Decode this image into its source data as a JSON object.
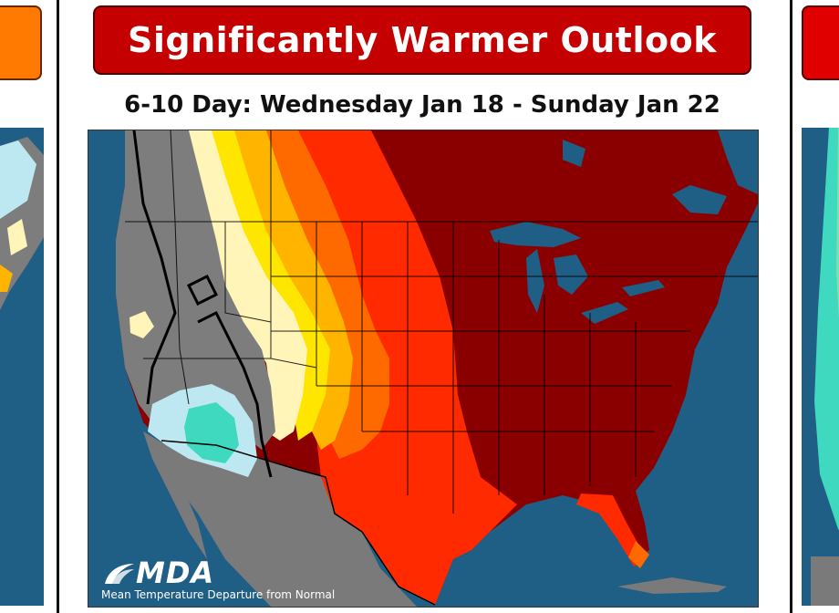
{
  "header": {
    "title": "Significantly Warmer Outlook",
    "date_range": "6-10 Day: Wednesday Jan 18 - Sunday Jan 22"
  },
  "map": {
    "logo_text": "MDA",
    "caption": "Mean Temperature Departure from Normal",
    "colors": {
      "ocean": "#1f5f86",
      "land_outside": "#7a7a7a",
      "much_below": "#3fd9c0",
      "below": "#bde8f2",
      "near_normal": "#7d7d7d",
      "slightly_above": "#fff5b8",
      "above": "#ffe600",
      "above_2": "#ffb400",
      "above_3": "#ff6a00",
      "well_above": "#ff2a00",
      "much_above": "#8a0000",
      "border": "#000000"
    }
  },
  "neighbors": {
    "left_banner_color": "#ff7a00",
    "right_banner_color": "#e00000"
  }
}
